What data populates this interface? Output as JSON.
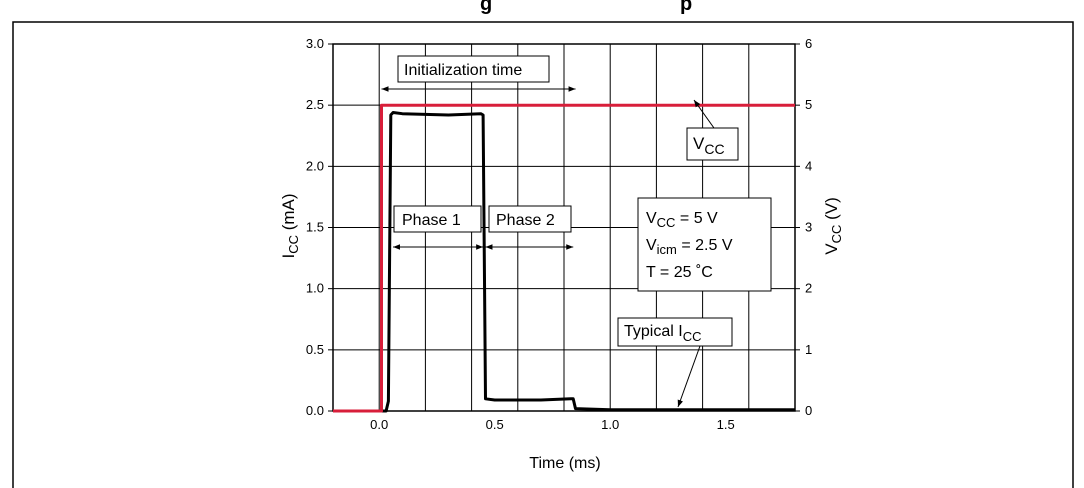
{
  "figure": {
    "title_fragment": "g",
    "title_fragment2": "p"
  },
  "chart_data": {
    "type": "line",
    "title": "",
    "xlabel": "Time (ms)",
    "ylabel_left": {
      "main": "I",
      "sub": "CC",
      "rest": " (mA)"
    },
    "ylabel_right": {
      "main": "V",
      "sub": "CC",
      "rest": " (V)"
    },
    "xlim": [
      -0.2,
      1.8
    ],
    "ylim_left": [
      0,
      3.0
    ],
    "ylim_right": [
      0,
      6
    ],
    "x_ticks": [
      {
        "v": 0.0,
        "label": "0.0"
      },
      {
        "v": 0.5,
        "label": "0.5"
      },
      {
        "v": 1.0,
        "label": "1.0"
      },
      {
        "v": 1.5,
        "label": "1.5"
      }
    ],
    "y_ticks_left": [
      {
        "v": 0.0,
        "label": "0.0"
      },
      {
        "v": 0.5,
        "label": "0.5"
      },
      {
        "v": 1.0,
        "label": "1.0"
      },
      {
        "v": 1.5,
        "label": "1.5"
      },
      {
        "v": 2.0,
        "label": "2.0"
      },
      {
        "v": 2.5,
        "label": "2.5"
      },
      {
        "v": 3.0,
        "label": "3.0"
      }
    ],
    "y_ticks_right": [
      {
        "v": 0,
        "label": "0"
      },
      {
        "v": 1,
        "label": "1"
      },
      {
        "v": 2,
        "label": "2"
      },
      {
        "v": 3,
        "label": "3"
      },
      {
        "v": 4,
        "label": "4"
      },
      {
        "v": 5,
        "label": "5"
      },
      {
        "v": 6,
        "label": "6"
      }
    ],
    "grid": true,
    "x_grid": [
      -0.2,
      0.0,
      0.2,
      0.4,
      0.6,
      0.8,
      1.0,
      1.2,
      1.4,
      1.6,
      1.8
    ],
    "y_grid_left": [
      0.0,
      0.5,
      1.0,
      1.5,
      2.0,
      2.5,
      3.0
    ],
    "series": [
      {
        "axis": "left",
        "color": "#000000",
        "points": [
          [
            -0.2,
            0.0
          ],
          [
            0.03,
            0.0
          ],
          [
            0.04,
            0.08
          ],
          [
            0.05,
            2.42
          ],
          [
            0.06,
            2.44
          ],
          [
            0.1,
            2.43
          ],
          [
            0.3,
            2.42
          ],
          [
            0.44,
            2.43
          ],
          [
            0.45,
            2.42
          ],
          [
            0.46,
            0.1
          ],
          [
            0.5,
            0.09
          ],
          [
            0.7,
            0.09
          ],
          [
            0.83,
            0.1
          ],
          [
            0.84,
            0.1
          ],
          [
            0.85,
            0.02
          ],
          [
            1.0,
            0.01
          ],
          [
            1.2,
            0.01
          ],
          [
            1.5,
            0.01
          ],
          [
            1.8,
            0.01
          ]
        ]
      },
      {
        "axis": "right",
        "color": "#d81e3a",
        "points": [
          [
            -0.2,
            0.0
          ],
          [
            0.01,
            0.0
          ],
          [
            0.01,
            5.0
          ],
          [
            1.8,
            5.0
          ]
        ]
      }
    ],
    "annotations": {
      "init_label": "Initialization time",
      "init_range": [
        0.01,
        0.85
      ],
      "phase1_label": "Phase 1",
      "phase1_range": [
        0.06,
        0.45
      ],
      "phase2_label": "Phase 2",
      "phase2_range": [
        0.46,
        0.84
      ],
      "vcc_label": {
        "main": "V",
        "sub": "CC"
      },
      "typical_label": {
        "main": "Typical I",
        "sub": "CC"
      },
      "conditions": [
        {
          "main": "V",
          "sub": "CC",
          "rest": " = 5 V"
        },
        {
          "main": "V",
          "sub": "icm",
          "rest": " = 2.5 V"
        },
        {
          "main": "T = 25 ˚C",
          "sub": "",
          "rest": ""
        }
      ]
    }
  }
}
